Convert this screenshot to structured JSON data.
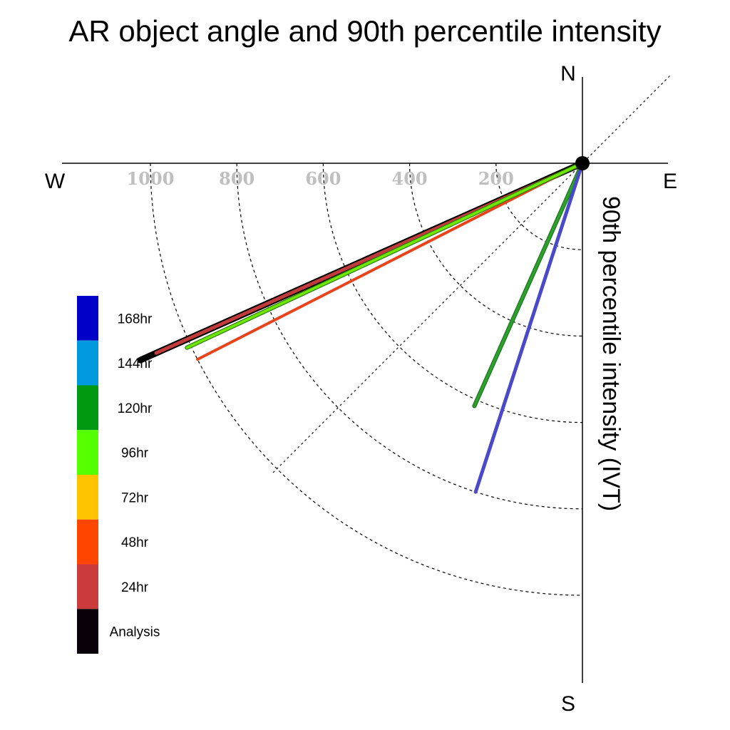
{
  "chart_data": {
    "type": "polar-vector",
    "title": "AR object angle and 90th percentile intensity",
    "radial_label": "90th percentile intensity (IVT)",
    "compass": {
      "north": "N",
      "south": "S",
      "east": "E",
      "west": "W"
    },
    "rings": [
      200,
      400,
      600,
      800,
      1000
    ],
    "tick_labels": [
      "1000",
      "800",
      "600",
      "400",
      "200"
    ],
    "origin_marker_color": "#000000",
    "series": [
      {
        "name": "168hr",
        "color": "#0000c8",
        "line_color": "#4a4ac8",
        "angle_deg": 198,
        "intensity": 800
      },
      {
        "name": "144hr",
        "color": "#0099dd",
        "line_color": null,
        "angle_deg": null,
        "intensity": null
      },
      {
        "name": "120hr",
        "color": "#009911",
        "line_color": "#2ca02c",
        "angle_deg": 204,
        "intensity": 615
      },
      {
        "name": "96hr",
        "color": "#55ff00",
        "line_color": "#6ee600",
        "angle_deg": 245,
        "intensity": 1010
      },
      {
        "name": "72hr",
        "color": "#ffc400",
        "line_color": "#ffc400",
        "angle_deg": 245,
        "intensity": 1000
      },
      {
        "name": "48hr",
        "color": "#ff4500",
        "line_color": "#e8441c",
        "angle_deg": 243,
        "intensity": 1000
      },
      {
        "name": "24hr",
        "color": "#cc3b3b",
        "line_color": "#c03b3b",
        "angle_deg": 246,
        "intensity": 1080
      },
      {
        "name": "Analysis",
        "color": "#0a000a",
        "line_color": "#000000",
        "angle_deg": 246,
        "intensity": 1120
      }
    ]
  }
}
